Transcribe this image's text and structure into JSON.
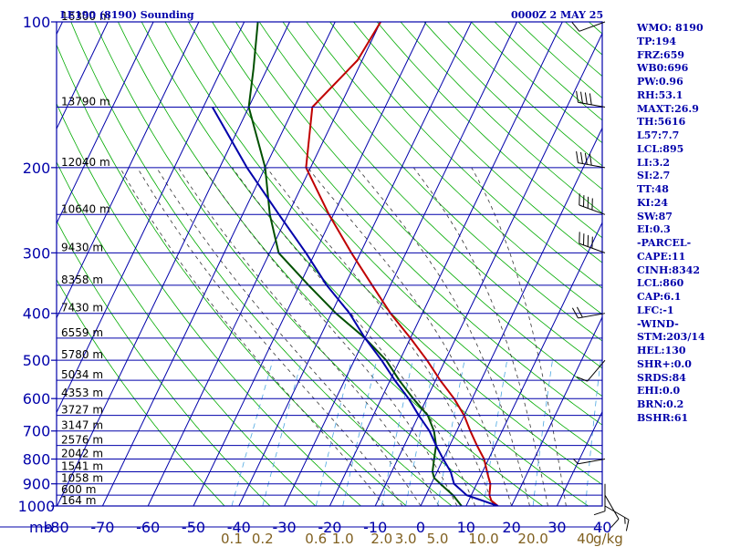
{
  "chart_data": {
    "type": "line",
    "title_left": "LE190 (8190) Sounding",
    "title_right": "0000Z  2 MAY 25",
    "axis_units_label": "mb",
    "mixing_ratio_unit": "g/kg",
    "pressure_ticks": [
      "100",
      "200",
      "300",
      "400",
      "500",
      "600",
      "700",
      "800",
      "900",
      "1000"
    ],
    "temperature_ticks": [
      "-80",
      "-70",
      "-60",
      "-50",
      "-40",
      "-30",
      "-20",
      "-10",
      "0",
      "10",
      "20",
      "30",
      "40"
    ],
    "mixing_ratio_labels": [
      "0.1",
      "0.2",
      "0.6",
      "1.0",
      "2.0",
      "3.0",
      "5.0",
      "10.0",
      "20.0",
      "40"
    ],
    "height_labels": [
      {
        "p": 100,
        "label": "16300 m"
      },
      {
        "p": 150,
        "label": "13790 m"
      },
      {
        "p": 200,
        "label": "12040 m"
      },
      {
        "p": 250,
        "label": "10640 m"
      },
      {
        "p": 300,
        "label": "9430 m"
      },
      {
        "p": 350,
        "label": "8358 m"
      },
      {
        "p": 400,
        "label": "7430 m"
      },
      {
        "p": 450,
        "label": "6559 m"
      },
      {
        "p": 500,
        "label": "5780 m"
      },
      {
        "p": 550,
        "label": "5034 m"
      },
      {
        "p": 600,
        "label": "4353 m"
      },
      {
        "p": 650,
        "label": "3727 m"
      },
      {
        "p": 700,
        "label": "3147 m"
      },
      {
        "p": 750,
        "label": "2576 m"
      },
      {
        "p": 800,
        "label": "2042 m"
      },
      {
        "p": 850,
        "label": "1541 m"
      },
      {
        "p": 900,
        "label": "1058 m"
      },
      {
        "p": 950,
        "label": "600 m"
      },
      {
        "p": 1000,
        "label": "164 m"
      }
    ],
    "xlim": [
      -80,
      40
    ],
    "ylim": [
      1000,
      100
    ],
    "y_scale": "log",
    "series": [
      {
        "color": "#c00000",
        "points": [
          {
            "p": 1000,
            "t": 17
          },
          {
            "p": 975,
            "t": 15
          },
          {
            "p": 950,
            "t": 14
          },
          {
            "p": 900,
            "t": 13
          },
          {
            "p": 875,
            "t": 12
          },
          {
            "p": 850,
            "t": 11
          },
          {
            "p": 800,
            "t": 9
          },
          {
            "p": 750,
            "t": 6
          },
          {
            "p": 700,
            "t": 3
          },
          {
            "p": 650,
            "t": 0
          },
          {
            "p": 600,
            "t": -4
          },
          {
            "p": 550,
            "t": -9
          },
          {
            "p": 500,
            "t": -14
          },
          {
            "p": 450,
            "t": -20
          },
          {
            "p": 400,
            "t": -27
          },
          {
            "p": 350,
            "t": -34
          },
          {
            "p": 300,
            "t": -42
          },
          {
            "p": 250,
            "t": -51
          },
          {
            "p": 200,
            "t": -61
          },
          {
            "p": 150,
            "t": -66
          },
          {
            "p": 120,
            "t": -61
          },
          {
            "p": 100,
            "t": -60
          }
        ]
      },
      {
        "color": "#005000",
        "points": [
          {
            "p": 1000,
            "t": 9
          },
          {
            "p": 950,
            "t": 6
          },
          {
            "p": 900,
            "t": 2
          },
          {
            "p": 875,
            "t": 0
          },
          {
            "p": 850,
            "t": -1
          },
          {
            "p": 800,
            "t": -2
          },
          {
            "p": 750,
            "t": -3
          },
          {
            "p": 700,
            "t": -5
          },
          {
            "p": 650,
            "t": -8
          },
          {
            "p": 600,
            "t": -13
          },
          {
            "p": 550,
            "t": -18
          },
          {
            "p": 500,
            "t": -23
          },
          {
            "p": 450,
            "t": -30
          },
          {
            "p": 400,
            "t": -39
          },
          {
            "p": 350,
            "t": -48
          },
          {
            "p": 300,
            "t": -58
          },
          {
            "p": 250,
            "t": -64
          },
          {
            "p": 200,
            "t": -70
          },
          {
            "p": 150,
            "t": -80
          },
          {
            "p": 125,
            "t": -83
          },
          {
            "p": 100,
            "t": -87
          }
        ]
      },
      {
        "color": "#0000aa",
        "points": [
          {
            "p": 1000,
            "t": 17
          },
          {
            "p": 950,
            "t": 9
          },
          {
            "p": 900,
            "t": 5
          },
          {
            "p": 850,
            "t": 3
          },
          {
            "p": 800,
            "t": 0
          },
          {
            "p": 750,
            "t": -3
          },
          {
            "p": 700,
            "t": -6
          },
          {
            "p": 650,
            "t": -10
          },
          {
            "p": 600,
            "t": -14
          },
          {
            "p": 550,
            "t": -19
          },
          {
            "p": 500,
            "t": -24
          },
          {
            "p": 450,
            "t": -30
          },
          {
            "p": 400,
            "t": -36
          },
          {
            "p": 350,
            "t": -44
          },
          {
            "p": 300,
            "t": -52
          },
          {
            "p": 250,
            "t": -62
          },
          {
            "p": 200,
            "t": -74
          },
          {
            "p": 150,
            "t": -88
          }
        ]
      }
    ],
    "wind_barbs": [
      {
        "p": 100,
        "dir": 250,
        "speed_kt": 10
      },
      {
        "p": 150,
        "dir": 280,
        "speed_kt": 40
      },
      {
        "p": 200,
        "dir": 280,
        "speed_kt": 40
      },
      {
        "p": 250,
        "dir": 290,
        "speed_kt": 40
      },
      {
        "p": 300,
        "dir": 290,
        "speed_kt": 40
      },
      {
        "p": 400,
        "dir": 260,
        "speed_kt": 20
      },
      {
        "p": 500,
        "dir": 220,
        "speed_kt": 10
      },
      {
        "p": 800,
        "dir": 260,
        "speed_kt": 5
      },
      {
        "p": 900,
        "dir": 180,
        "speed_kt": 10
      },
      {
        "p": 950,
        "dir": 150,
        "speed_kt": 10
      },
      {
        "p": 1000,
        "dir": 120,
        "speed_kt": 15
      }
    ],
    "colors": {
      "frame": "#0000aa",
      "isotherm": "#0000aa",
      "dry_adiabat": "#00aa00",
      "moist_adiabat": "#333333",
      "mixing_ratio": "#4aa6e0",
      "mixing_ratio_labels": "#806020",
      "background": "#ffffff"
    }
  },
  "indices": [
    "WMO: 8190",
    "TP:194",
    "FRZ:659",
    "WB0:696",
    "PW:0.96",
    "RH:53.1",
    "MAXT:26.9",
    "TH:5616",
    "L57:7.7",
    "LCL:895",
    "LI:3.2",
    "SI:2.7",
    "TT:48",
    "KI:24",
    "SW:87",
    "EI:0.3",
    "-PARCEL-",
    "CAPE:11",
    "CINH:8342",
    "LCL:860",
    "CAP:6.1",
    "LFC:-1",
    "-WIND-",
    "STM:203/14",
    "HEL:130",
    "SHR+:0.0",
    "SRDS:84",
    "EHI:0.0",
    "BRN:0.2",
    "BSHR:61"
  ]
}
